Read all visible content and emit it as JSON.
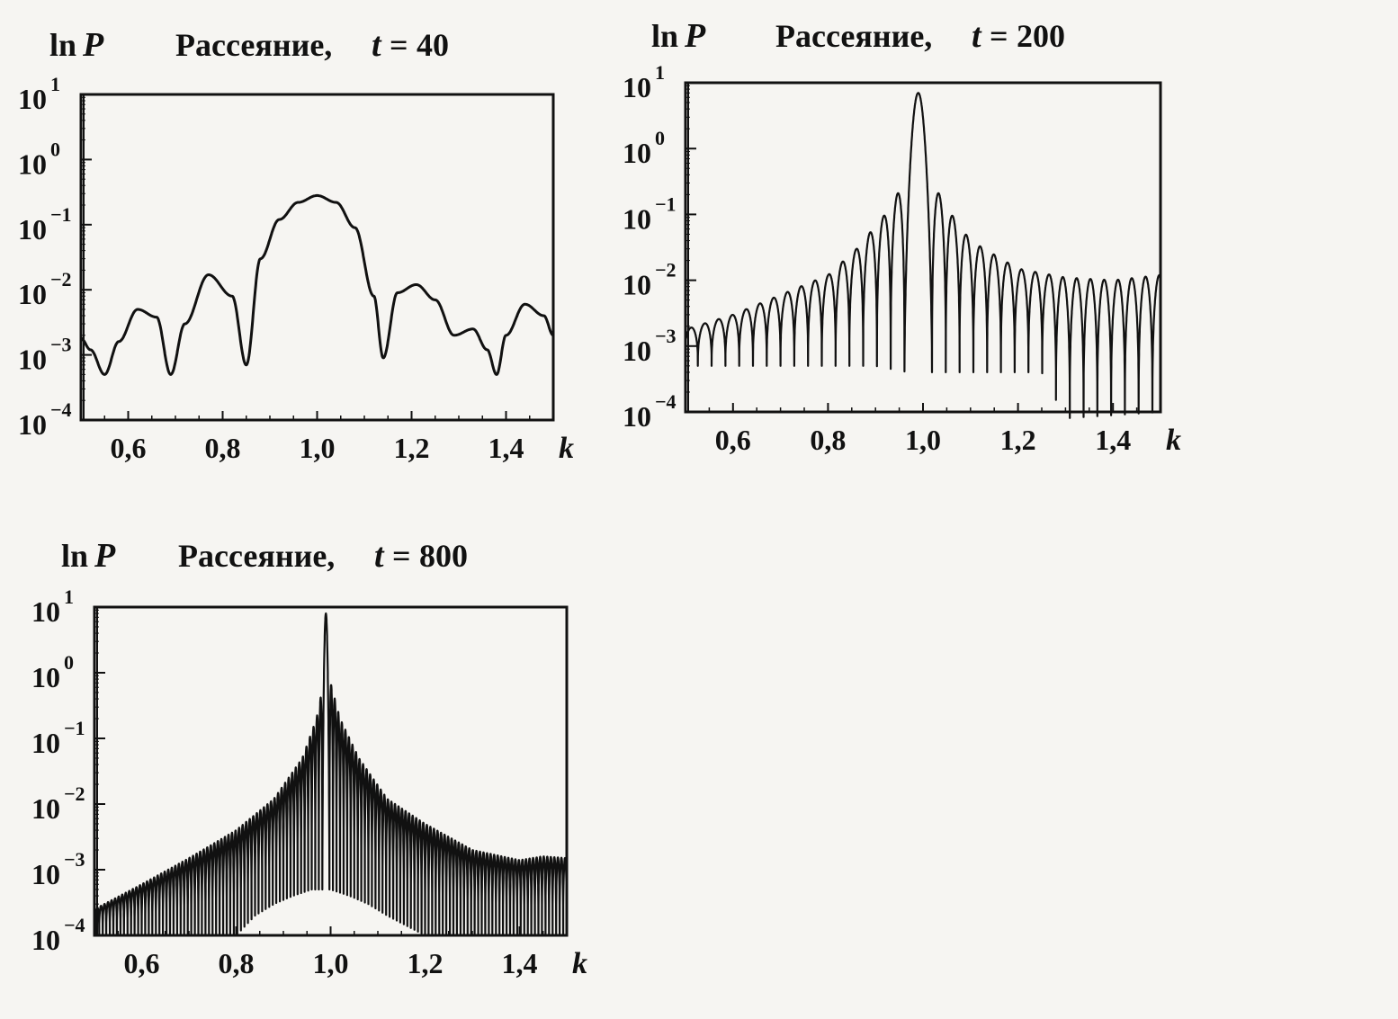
{
  "figure": {
    "panel_title_prefix": "Рассеяние,",
    "panel_title_var": "t",
    "ylabel_ln": "ln",
    "ylabel_var": "P",
    "xlabel": "k",
    "ytick_base": "10"
  },
  "chart_data": [
    {
      "type": "line",
      "title": "Рассеяние,  t = 40",
      "title_t": "40",
      "xlabel": "k",
      "ylabel": "ln P",
      "yscale": "log",
      "xlim": [
        0.5,
        1.5
      ],
      "ylim": [
        0.0001,
        10
      ],
      "xticks": [
        0.6,
        0.8,
        1.0,
        1.2,
        1.4
      ],
      "xtick_labels": [
        "0,6",
        "0,8",
        "1,0",
        "1,2",
        "1,4"
      ],
      "yticks": [
        0.0001,
        0.001,
        0.01,
        0.1,
        1,
        10
      ],
      "ytick_exponents": [
        "−4",
        "−3",
        "−2",
        "−1",
        "0",
        "1"
      ],
      "grid": false,
      "series": [
        {
          "x": [
            0.5,
            0.52,
            0.55,
            0.58,
            0.62,
            0.66,
            0.69,
            0.72,
            0.77,
            0.82,
            0.85,
            0.88,
            0.92,
            0.96,
            1.0,
            1.04,
            1.08,
            1.12,
            1.14,
            1.17,
            1.21,
            1.25,
            1.29,
            1.33,
            1.36,
            1.38,
            1.4,
            1.44,
            1.48,
            1.5
          ],
          "y": [
            0.0018,
            0.0012,
            0.0005,
            0.0016,
            0.005,
            0.0038,
            0.0005,
            0.003,
            0.017,
            0.008,
            0.0007,
            0.03,
            0.12,
            0.22,
            0.28,
            0.22,
            0.09,
            0.008,
            0.0009,
            0.009,
            0.012,
            0.007,
            0.002,
            0.0025,
            0.0012,
            0.0005,
            0.002,
            0.006,
            0.004,
            0.002
          ]
        }
      ]
    },
    {
      "type": "line",
      "title": "Рассеяние,  t = 200",
      "title_t": "200",
      "xlabel": "k",
      "ylabel": "ln P",
      "yscale": "log",
      "xlim": [
        0.5,
        1.5
      ],
      "ylim": [
        0.0001,
        10
      ],
      "xticks": [
        0.6,
        0.8,
        1.0,
        1.2,
        1.4
      ],
      "xtick_labels": [
        "0,6",
        "0,8",
        "1,0",
        "1,2",
        "1,4"
      ],
      "yticks": [
        0.0001,
        0.001,
        0.01,
        0.1,
        1,
        10
      ],
      "ytick_exponents": [
        "−4",
        "−3",
        "−2",
        "−1",
        "0",
        "1"
      ],
      "grid": false,
      "peak": {
        "x": 0.99,
        "y": 7.0
      },
      "lobe_spacing": 0.029,
      "lobe_envelope_x": [
        0.5,
        0.6,
        0.7,
        0.8,
        0.86,
        0.92,
        0.96,
        1.02,
        1.06,
        1.1,
        1.2,
        1.3,
        1.4,
        1.5
      ],
      "lobe_envelope_y": [
        0.0018,
        0.003,
        0.006,
        0.012,
        0.03,
        0.1,
        0.3,
        0.3,
        0.1,
        0.04,
        0.015,
        0.011,
        0.01,
        0.012
      ],
      "null_level_x": [
        0.5,
        0.9,
        0.97,
        1.02,
        1.1,
        1.25,
        1.3,
        1.5
      ],
      "null_level_y": [
        0.0005,
        0.0005,
        0.0004,
        0.0004,
        0.0004,
        0.0004,
        8e-05,
        0.0001
      ]
    },
    {
      "type": "line",
      "title": "Рассеяние,  t = 800",
      "title_t": "800",
      "xlabel": "k",
      "ylabel": "ln P",
      "yscale": "log",
      "xlim": [
        0.5,
        1.5
      ],
      "ylim": [
        0.0001,
        10
      ],
      "xticks": [
        0.6,
        0.8,
        1.0,
        1.2,
        1.4
      ],
      "xtick_labels": [
        "0,6",
        "0,8",
        "1,0",
        "1,2",
        "1,4"
      ],
      "yticks": [
        0.0001,
        0.001,
        0.01,
        0.1,
        1,
        10
      ],
      "ytick_exponents": [
        "−4",
        "−3",
        "−2",
        "−1",
        "0",
        "1"
      ],
      "grid": false,
      "peak": {
        "x": 0.99,
        "y": 8.0
      },
      "lobe_spacing": 0.0075,
      "lobe_envelope_x": [
        0.5,
        0.6,
        0.7,
        0.8,
        0.88,
        0.94,
        0.97,
        0.985,
        1.0,
        1.02,
        1.06,
        1.12,
        1.2,
        1.3,
        1.4,
        1.45,
        1.5
      ],
      "lobe_envelope_y": [
        0.00025,
        0.0006,
        0.0015,
        0.004,
        0.012,
        0.05,
        0.2,
        0.7,
        0.7,
        0.2,
        0.05,
        0.012,
        0.005,
        0.002,
        0.0014,
        0.0016,
        0.0015
      ],
      "null_level_x": [
        0.5,
        0.8,
        0.84,
        0.88,
        0.92,
        0.96,
        1.0,
        1.04,
        1.08,
        1.12,
        1.2,
        1.5
      ],
      "null_level_y": [
        0.0001,
        0.0001,
        0.0002,
        0.0003,
        0.0004,
        0.0005,
        0.0005,
        0.0004,
        0.0003,
        0.0002,
        0.0001,
        0.0001
      ]
    }
  ]
}
